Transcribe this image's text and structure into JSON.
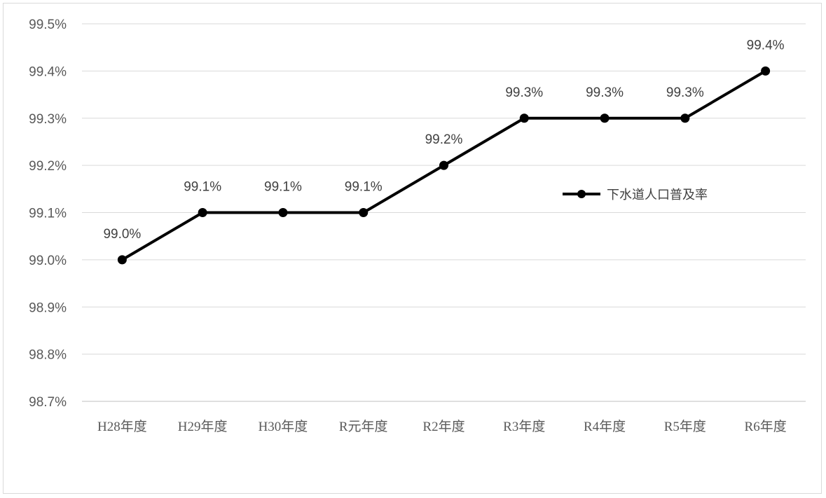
{
  "chart_data": {
    "type": "line",
    "categories": [
      "H28年度",
      "H29年度",
      "H30年度",
      "R元年度",
      "R2年度",
      "R3年度",
      "R4年度",
      "R5年度",
      "R6年度"
    ],
    "series": [
      {
        "name": "下水道人口普及率",
        "values": [
          99.0,
          99.1,
          99.1,
          99.1,
          99.2,
          99.3,
          99.3,
          99.3,
          99.4
        ],
        "color": "#000000"
      }
    ],
    "data_labels": [
      "99.0%",
      "99.1%",
      "99.1%",
      "99.1%",
      "99.2%",
      "99.3%",
      "99.3%",
      "99.3%",
      "99.4%"
    ],
    "ylim": [
      98.7,
      99.5
    ],
    "yticks": [
      98.7,
      98.8,
      98.9,
      99.0,
      99.1,
      99.2,
      99.3,
      99.4,
      99.5
    ],
    "ytick_labels": [
      "98.7%",
      "98.8%",
      "98.9%",
      "99.0%",
      "99.1%",
      "99.2%",
      "99.3%",
      "99.4%",
      "99.5%"
    ],
    "grid": true,
    "legend_position": "right"
  }
}
